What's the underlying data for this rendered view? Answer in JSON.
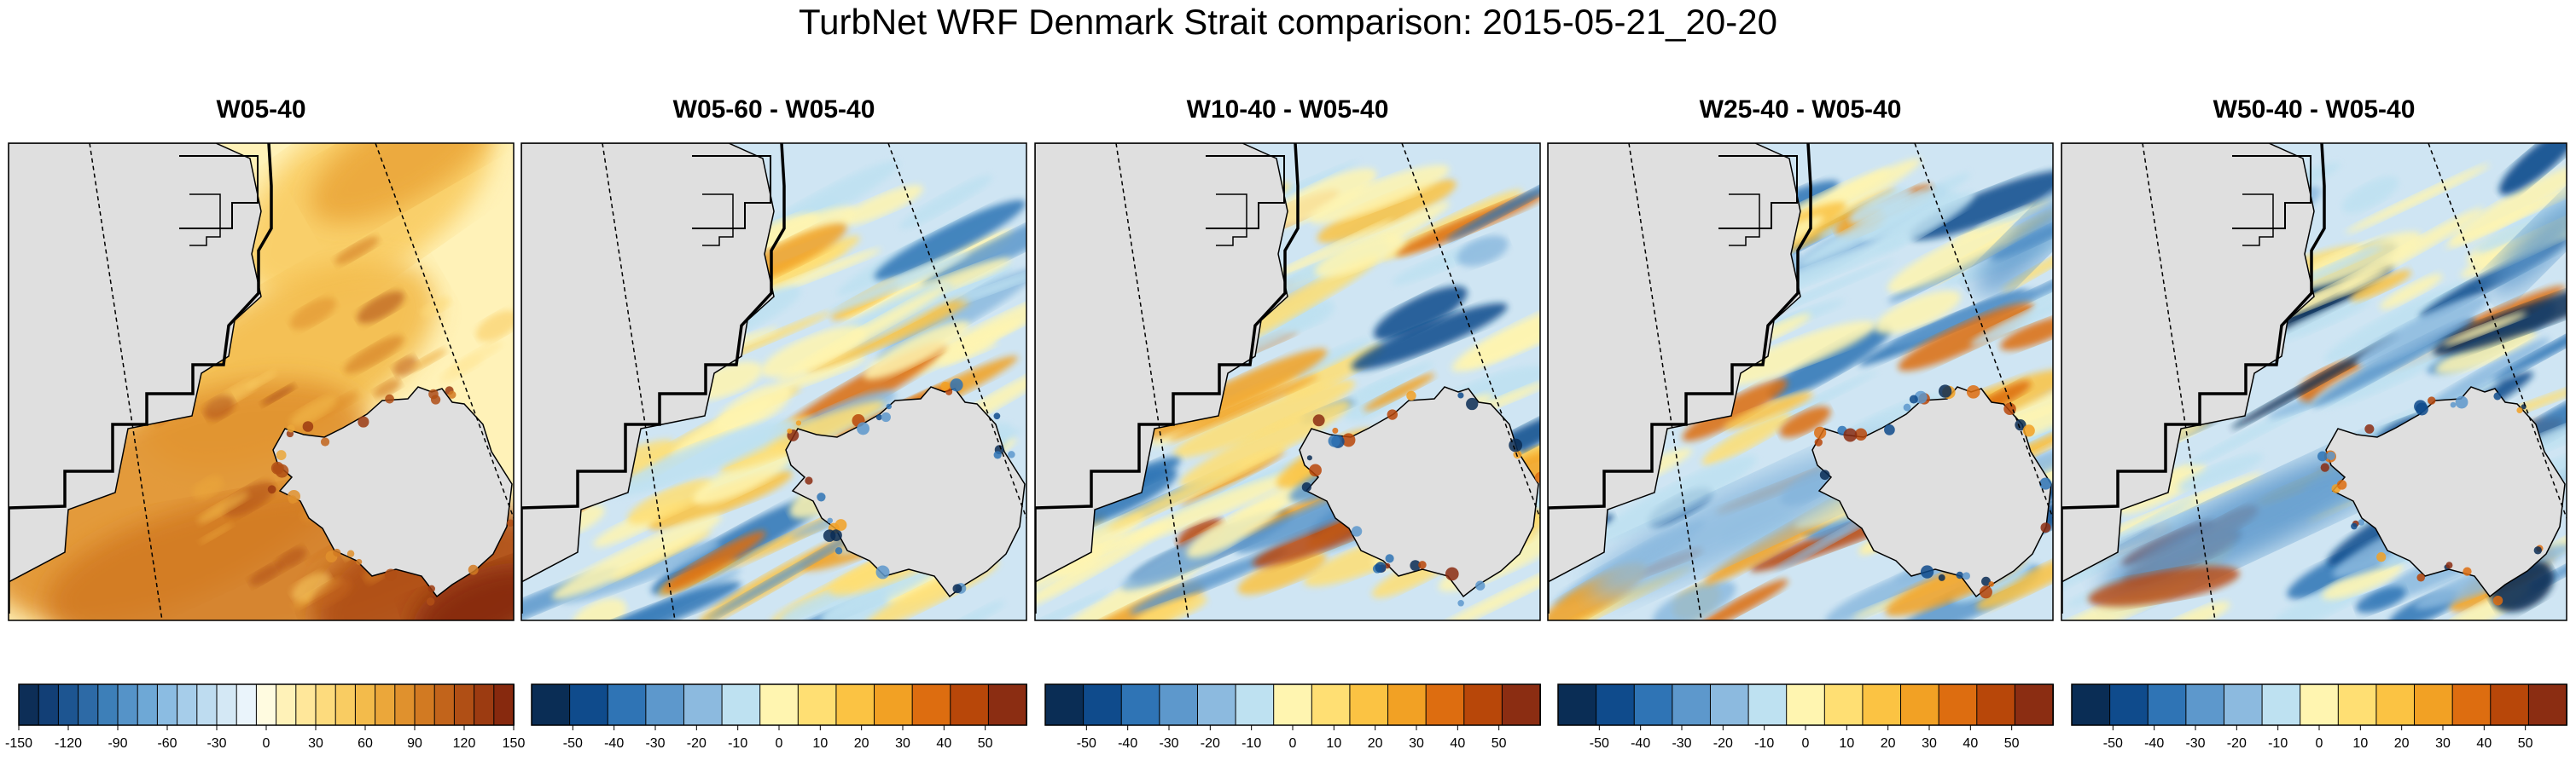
{
  "title": "TurbNet WRF Denmark Strait comparison: 2015-05-21_20-20",
  "colors": {
    "land": "#dfdfdf",
    "coast": "#000000",
    "sequential": [
      "#0d2e57",
      "#123f76",
      "#1d5591",
      "#2d6aa6",
      "#3d7fb8",
      "#5593c8",
      "#6ea8d6",
      "#8bbce2",
      "#a6cdea",
      "#bedcf0",
      "#d4e8f5",
      "#eaf4fb",
      "#fffbe0",
      "#fff2b8",
      "#ffe79a",
      "#fddb7d",
      "#f9cc62",
      "#f3bb4b",
      "#eba73a",
      "#e0912d",
      "#d27a22",
      "#c2641b",
      "#b04f15",
      "#9c3b11",
      "#87290e"
    ],
    "diverging": [
      "#0a2d55",
      "#0f4b8c",
      "#2f74b5",
      "#5d98cc",
      "#8cbadf",
      "#bee1f1",
      "#fff5b0",
      "#ffdf73",
      "#fbc343",
      "#f2a124",
      "#dd6d10",
      "#b84709",
      "#8b2d12"
    ]
  },
  "panels": [
    {
      "name": "W05-40",
      "title": "W05-40",
      "colorbar": {
        "type": "sequential",
        "range": [
          -150,
          150
        ],
        "ticks": [
          "-150",
          "-120",
          "-90",
          "-60",
          "-30",
          "0",
          "30",
          "60",
          "90",
          "120",
          "150"
        ]
      }
    },
    {
      "name": "W05-60-minus-W05-40",
      "title": "W05-60 - W05-40",
      "colorbar": {
        "type": "diverging",
        "range": [
          -60,
          60
        ],
        "ticks": [
          "-50",
          "-40",
          "-30",
          "-20",
          "-10",
          "0",
          "10",
          "20",
          "30",
          "40",
          "50"
        ]
      }
    },
    {
      "name": "W10-40-minus-W05-40",
      "title": "W10-40 - W05-40",
      "colorbar": {
        "type": "diverging",
        "range": [
          -60,
          60
        ],
        "ticks": [
          "-50",
          "-40",
          "-30",
          "-20",
          "-10",
          "0",
          "10",
          "20",
          "30",
          "40",
          "50"
        ]
      }
    },
    {
      "name": "W25-40-minus-W05-40",
      "title": "W25-40 - W05-40",
      "colorbar": {
        "type": "diverging",
        "range": [
          -60,
          60
        ],
        "ticks": [
          "-50",
          "-40",
          "-30",
          "-20",
          "-10",
          "0",
          "10",
          "20",
          "30",
          "40",
          "50"
        ]
      }
    },
    {
      "name": "W50-40-minus-W05-40",
      "title": "W50-40 - W05-40",
      "colorbar": {
        "type": "diverging",
        "range": [
          -60,
          60
        ],
        "ticks": [
          "-50",
          "-40",
          "-30",
          "-20",
          "-10",
          "0",
          "10",
          "20",
          "30",
          "40",
          "50"
        ]
      }
    }
  ]
}
